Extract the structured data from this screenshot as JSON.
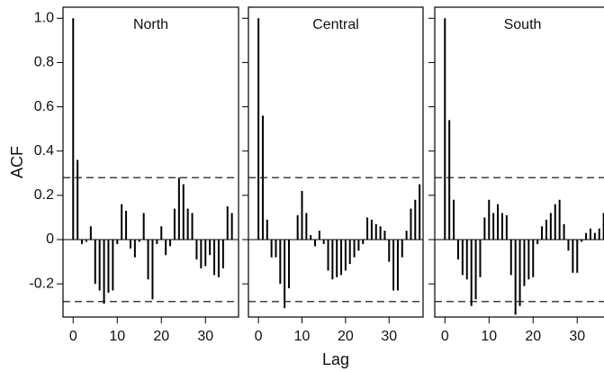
{
  "chart_data": [
    {
      "type": "bar",
      "title": "North",
      "y_label": "ACF",
      "conf_bound": 0.28,
      "x": [
        0,
        1,
        2,
        3,
        4,
        5,
        6,
        7,
        8,
        9,
        10,
        11,
        12,
        13,
        14,
        15,
        16,
        17,
        18,
        19,
        20,
        21,
        22,
        23,
        24,
        25,
        26,
        27,
        28,
        29,
        30,
        31,
        32,
        33,
        34,
        35,
        36
      ],
      "values": [
        1.0,
        0.36,
        -0.02,
        -0.01,
        0.06,
        -0.2,
        -0.23,
        -0.29,
        -0.24,
        -0.23,
        -0.02,
        0.16,
        0.13,
        -0.04,
        -0.08,
        -0.01,
        0.12,
        -0.18,
        -0.27,
        -0.02,
        0.06,
        -0.07,
        -0.03,
        0.14,
        0.28,
        0.25,
        0.14,
        0.12,
        -0.09,
        -0.13,
        -0.12,
        -0.07,
        -0.16,
        -0.17,
        -0.13,
        0.15,
        0.12
      ],
      "xlim": [
        -2.3,
        37.5
      ],
      "ylim": [
        -0.35,
        1.05
      ],
      "xticks": [
        0,
        10,
        20,
        30
      ],
      "yticks": [
        -0.2,
        0,
        0.2,
        0.4,
        0.6,
        0.8,
        {
          "value": 1.0,
          "label": "1.0"
        }
      ]
    },
    {
      "type": "bar",
      "title": "Central",
      "x_label": "Lag",
      "conf_bound": 0.28,
      "x": [
        0,
        1,
        2,
        3,
        4,
        5,
        6,
        7,
        8,
        9,
        10,
        11,
        12,
        13,
        14,
        15,
        16,
        17,
        18,
        19,
        20,
        21,
        22,
        23,
        24,
        25,
        26,
        27,
        28,
        29,
        30,
        31,
        32,
        33,
        34,
        35,
        36,
        37
      ],
      "values": [
        1.0,
        0.56,
        0.09,
        -0.08,
        -0.08,
        -0.2,
        -0.31,
        -0.22,
        0.0,
        0.11,
        0.22,
        0.12,
        0.02,
        -0.03,
        0.04,
        -0.02,
        -0.14,
        -0.18,
        -0.17,
        -0.16,
        -0.14,
        -0.11,
        -0.08,
        -0.05,
        -0.02,
        0.1,
        0.09,
        0.07,
        0.06,
        0.04,
        -0.1,
        -0.23,
        -0.23,
        -0.08,
        0.04,
        0.14,
        0.18,
        0.25
      ],
      "xlim": [
        -2.3,
        37.8
      ],
      "ylim": [
        -0.35,
        1.05
      ],
      "xticks": [
        0,
        10,
        20,
        30
      ]
    },
    {
      "type": "bar",
      "title": "South",
      "conf_bound": 0.28,
      "x": [
        0,
        1,
        2,
        3,
        4,
        5,
        6,
        7,
        8,
        9,
        10,
        11,
        12,
        13,
        14,
        15,
        16,
        17,
        18,
        19,
        20,
        21,
        22,
        23,
        24,
        25,
        26,
        27,
        28,
        29,
        30,
        31,
        32,
        33,
        34,
        35,
        36
      ],
      "values": [
        1.0,
        0.54,
        0.18,
        -0.09,
        -0.16,
        -0.18,
        -0.3,
        -0.27,
        -0.17,
        0.1,
        0.18,
        0.12,
        0.16,
        0.12,
        0.11,
        -0.16,
        -0.34,
        -0.3,
        -0.21,
        -0.18,
        -0.17,
        -0.02,
        0.06,
        0.09,
        0.12,
        0.16,
        0.18,
        0.07,
        -0.05,
        -0.15,
        -0.15,
        -0.01,
        0.03,
        0.05,
        0.03,
        0.05,
        0.12
      ],
      "xlim": [
        -2.3,
        37.5
      ],
      "ylim": [
        -0.35,
        1.05
      ],
      "xticks": [
        0,
        10,
        20,
        30
      ]
    }
  ]
}
